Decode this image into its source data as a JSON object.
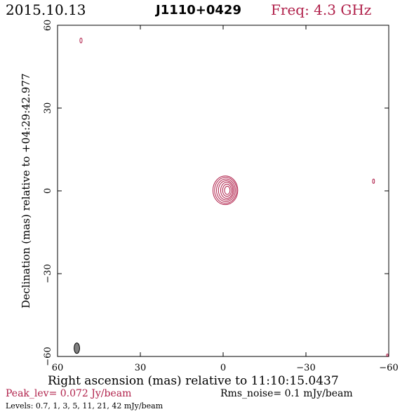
{
  "header": {
    "date": "2015.10.13",
    "source": "J1110+0429",
    "frequency": "Freq: 4.3 GHz"
  },
  "footer": {
    "peak": "Peak_lev=  0.072 Jy/beam",
    "rms": "Rms_noise=  0.1 mJy/beam",
    "levels": "Levels: 0.7,    1,    3,    5,   11,   21,   42 mJy/beam"
  },
  "colors": {
    "contour": "#b0204a",
    "axes": "#000000",
    "beam": "#808080"
  },
  "chart_data": {
    "type": "contour",
    "xlabel": "Right ascension (mas) relative to 11:10:15.0437",
    "ylabel": "Declination (mas) relative to +04:29:42.977",
    "xlim": [
      60,
      -60
    ],
    "ylim": [
      -60,
      60
    ],
    "xticks": [
      60,
      30,
      0,
      -30,
      -60
    ],
    "yticks": [
      -60,
      -30,
      0,
      30,
      60
    ],
    "xtick_labels": [
      "60",
      "30",
      "0",
      "−30",
      "−60"
    ],
    "ytick_labels": [
      "−60",
      "−30",
      "0",
      "30",
      "60"
    ],
    "levels_mJy": [
      0.7,
      1,
      3,
      5,
      11,
      21,
      42
    ],
    "peak_Jy_per_beam": 0.072,
    "rms_mJy_per_beam": 0.1,
    "main_component": {
      "center": [
        -0.8,
        0.2
      ],
      "contours": [
        {
          "level": 0.7,
          "rx": 4.5,
          "ry": 5.2,
          "dx": 0.0
        },
        {
          "level": 1,
          "rx": 4.0,
          "ry": 4.7,
          "dx": 0.1
        },
        {
          "level": 3,
          "rx": 3.4,
          "ry": 4.1,
          "dx": 0.2
        },
        {
          "level": 5,
          "rx": 2.8,
          "ry": 3.5,
          "dx": 0.3
        },
        {
          "level": 11,
          "rx": 2.2,
          "ry": 2.9,
          "dx": 0.5
        },
        {
          "level": 21,
          "rx": 1.6,
          "ry": 2.2,
          "dx": 0.6
        },
        {
          "level": 42,
          "rx": 1.0,
          "ry": 1.5,
          "dx": 0.7
        }
      ]
    },
    "spurious_components": [
      {
        "center": [
          51.5,
          54.5
        ],
        "rx": 0.4,
        "ry": 0.9
      },
      {
        "center": [
          -54.5,
          3.5
        ],
        "rx": 0.35,
        "ry": 0.8
      },
      {
        "center": [
          -59.5,
          -59.5
        ],
        "rx": 0.3,
        "ry": 0.4
      }
    ],
    "beam": {
      "center": [
        53,
        -57
      ],
      "major": 3.8,
      "minor": 2.0
    }
  }
}
